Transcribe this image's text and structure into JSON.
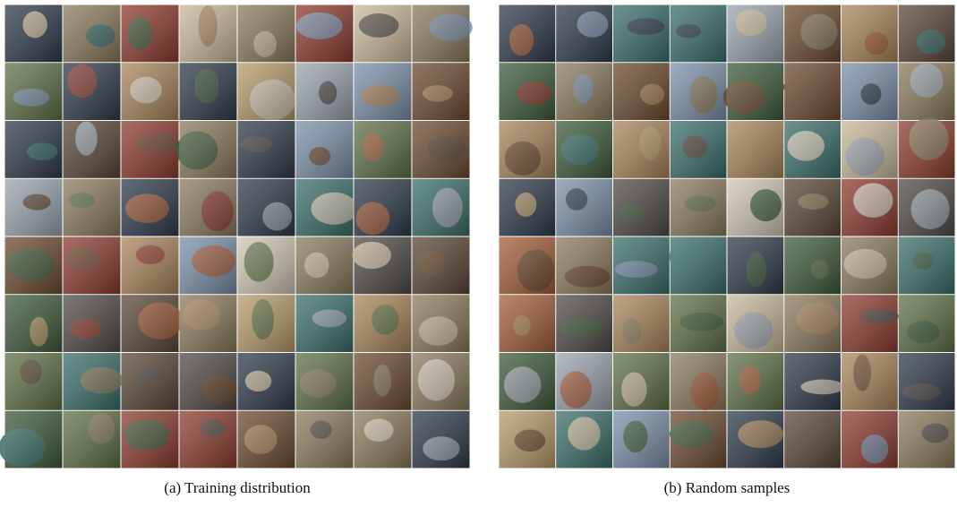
{
  "figure": {
    "panels": [
      {
        "caption": "(a) Training distribution"
      },
      {
        "caption": "(b) Random samples"
      }
    ]
  }
}
